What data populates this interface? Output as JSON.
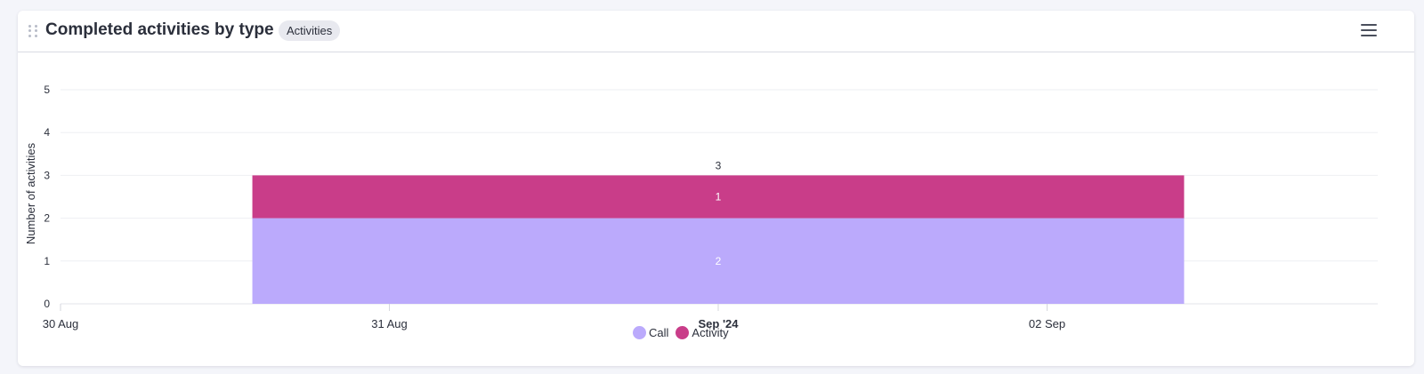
{
  "widget": {
    "title": "Completed activities by type",
    "badge": "Activities"
  },
  "icons": {
    "drag": "drag-handle-icon",
    "menu": "hamburger-menu-icon"
  },
  "colors": {
    "call": "#bbaafc",
    "activity": "#c93d89"
  },
  "chart_data": {
    "type": "bar",
    "stacked": true,
    "ylabel": "Number of activities",
    "ylim": [
      0,
      5
    ],
    "yticks": [
      "0",
      "1",
      "2",
      "3",
      "4",
      "5"
    ],
    "xaxis_ticks": [
      {
        "label": "30 Aug",
        "date": "2024-08-30",
        "bold": false
      },
      {
        "label": "31 Aug",
        "date": "2024-08-31",
        "bold": false
      },
      {
        "label": "Sep '24",
        "date": "2024-09-01",
        "bold": true
      },
      {
        "label": "02 Sep",
        "date": "2024-09-02",
        "bold": false
      }
    ],
    "bar": {
      "start": "2024-08-30T14:00",
      "end": "2024-09-02T10:00",
      "center": "2024-09-01",
      "total": 3
    },
    "series": [
      {
        "name": "Call",
        "value": 2,
        "label": "2"
      },
      {
        "name": "Activity",
        "value": 1,
        "label": "1"
      }
    ],
    "total_label": "3",
    "legend": [
      "Call",
      "Activity"
    ],
    "legend_position": "bottom-center",
    "grid": true
  }
}
